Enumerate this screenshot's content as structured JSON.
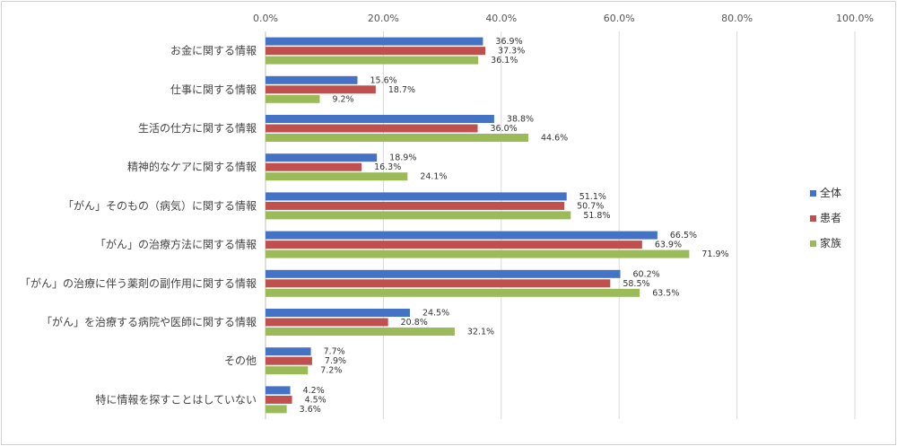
{
  "chart_data": {
    "type": "bar",
    "orientation": "horizontal",
    "categories": [
      "お金に関する情報",
      "仕事に関する情報",
      "生活の仕方に関する情報",
      "精神的なケアに関する情報",
      "「がん」そのもの（病気）に関する情報",
      "「がん」の治療方法に関する情報",
      "「がん」の治療に伴う薬剤の副作用に関する情報",
      "「がん」を治療する病院や医師に関する情報",
      "その他",
      "特に情報を探すことはしていない"
    ],
    "series": [
      {
        "name": "全体",
        "color": "#4472c4",
        "values": [
          36.9,
          15.6,
          38.8,
          18.9,
          51.1,
          66.5,
          60.2,
          24.5,
          7.7,
          4.2
        ],
        "labels": [
          "36.9%",
          "15.6%",
          "38.8%",
          "18.9%",
          "51.1%",
          "66.5%",
          "60.2%",
          "24.5%",
          "7.7%",
          "4.2%"
        ]
      },
      {
        "name": "患者",
        "color": "#c0504d",
        "values": [
          37.3,
          18.7,
          36.0,
          16.3,
          50.7,
          63.9,
          58.5,
          20.8,
          7.9,
          4.5
        ],
        "labels": [
          "37.3%",
          "18.7%",
          "36.0%",
          "16.3%",
          "50.7%",
          "63.9%",
          "58.5%",
          "20.8%",
          "7.9%",
          "4.5%"
        ]
      },
      {
        "name": "家族",
        "color": "#9bbb59",
        "values": [
          36.1,
          9.2,
          44.6,
          24.1,
          51.8,
          71.9,
          63.5,
          32.1,
          7.2,
          3.6
        ],
        "labels": [
          "36.1%",
          "9.2%",
          "44.6%",
          "24.1%",
          "51.8%",
          "71.9%",
          "63.5%",
          "32.1%",
          "7.2%",
          "3.6%"
        ]
      }
    ],
    "xlim": [
      0,
      100
    ],
    "ticks": [
      0,
      20,
      40,
      60,
      80,
      100
    ],
    "tick_labels": [
      "0.0%",
      "20.0%",
      "40.0%",
      "60.0%",
      "80.0%",
      "100.0%"
    ],
    "axis_position": "top",
    "grid": true,
    "legend_position": "right"
  }
}
